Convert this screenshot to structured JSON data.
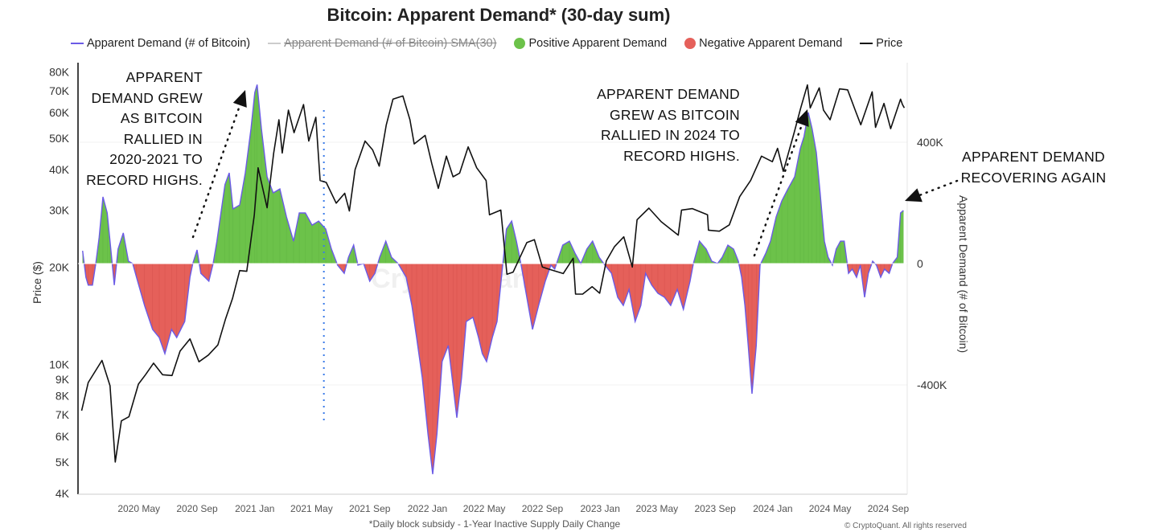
{
  "chart_data": {
    "type": "bar+line",
    "title": "Bitcoin: Apparent Demand* (30-day sum)",
    "legend": {
      "placement": "top",
      "items": [
        {
          "label": "Apparent Demand (# of Bitcoin)",
          "color": "#6b5be6",
          "kind": "line"
        },
        {
          "label": "Apparent Demand (# of Bitcoin)  SMA(30)",
          "color": "#bbbbbb",
          "kind": "line",
          "hidden": true
        },
        {
          "label": "Positive Apparent Demand",
          "color": "#6cc24a",
          "kind": "dot"
        },
        {
          "label": "Negative Apparent Demand",
          "color": "#e5605a",
          "kind": "dot"
        },
        {
          "label": "Price",
          "color": "#111111",
          "kind": "line"
        }
      ]
    },
    "ylabel_left": "Price ($)",
    "ylabel_right": "Apparent Demand (# of Bitcoin)",
    "y_left_scale": "log",
    "y_left_range": [
      4000,
      80000
    ],
    "y_left_ticks": [
      {
        "v": 80000,
        "label": "80K"
      },
      {
        "v": 70000,
        "label": "70K"
      },
      {
        "v": 60000,
        "label": "60K"
      },
      {
        "v": 50000,
        "label": "50K"
      },
      {
        "v": 40000,
        "label": "40K"
      },
      {
        "v": 30000,
        "label": "30K"
      },
      {
        "v": 20000,
        "label": "20K"
      },
      {
        "v": 10000,
        "label": "10K"
      },
      {
        "v": 9000,
        "label": "9K"
      },
      {
        "v": 8000,
        "label": "8K"
      },
      {
        "v": 7000,
        "label": "7K"
      },
      {
        "v": 6000,
        "label": "6K"
      },
      {
        "v": 5000,
        "label": "5K"
      },
      {
        "v": 4000,
        "label": "4K"
      }
    ],
    "y_right_ticks": [
      {
        "v": 400000,
        "label": "400K"
      },
      {
        "v": 0,
        "label": "0"
      },
      {
        "v": -400000,
        "label": "-400K"
      }
    ],
    "x_range": [
      "2020-01-01",
      "2024-10-10"
    ],
    "x_ticks": [
      {
        "d": "2020-05-01",
        "label": "2020 May"
      },
      {
        "d": "2020-09-01",
        "label": "2020 Sep"
      },
      {
        "d": "2021-01-01",
        "label": "2021 Jan"
      },
      {
        "d": "2021-05-01",
        "label": "2021 May"
      },
      {
        "d": "2021-09-01",
        "label": "2021 Sep"
      },
      {
        "d": "2022-01-01",
        "label": "2022 Jan"
      },
      {
        "d": "2022-05-01",
        "label": "2022 May"
      },
      {
        "d": "2022-09-01",
        "label": "2022 Sep"
      },
      {
        "d": "2023-01-01",
        "label": "2023 Jan"
      },
      {
        "d": "2023-05-01",
        "label": "2023 May"
      },
      {
        "d": "2023-09-01",
        "label": "2023 Sep"
      },
      {
        "d": "2024-01-01",
        "label": "2024 Jan"
      },
      {
        "d": "2024-05-01",
        "label": "2024 May"
      },
      {
        "d": "2024-09-01",
        "label": "2024 Sep"
      }
    ],
    "grid": true,
    "vertical_marker_date": "2021-05-27",
    "demand": [
      [
        "2020-01-03",
        42000
      ],
      [
        "2020-01-10",
        -45000
      ],
      [
        "2020-01-15",
        -71000
      ],
      [
        "2020-01-24",
        -71000
      ],
      [
        "2020-01-31",
        0
      ],
      [
        "2020-02-07",
        87000
      ],
      [
        "2020-02-15",
        220000
      ],
      [
        "2020-02-24",
        167000
      ],
      [
        "2020-03-01",
        74000
      ],
      [
        "2020-03-10",
        -71000
      ],
      [
        "2020-03-18",
        48000
      ],
      [
        "2020-03-29",
        101000
      ],
      [
        "2020-04-09",
        8000
      ],
      [
        "2020-04-18",
        0
      ],
      [
        "2020-04-26",
        -45000
      ],
      [
        "2020-05-13",
        -138000
      ],
      [
        "2020-05-30",
        -217000
      ],
      [
        "2020-06-13",
        -244000
      ],
      [
        "2020-06-25",
        -297000
      ],
      [
        "2020-07-09",
        -217000
      ],
      [
        "2020-07-20",
        -244000
      ],
      [
        "2020-08-06",
        -191000
      ],
      [
        "2020-08-17",
        -45000
      ],
      [
        "2020-08-23",
        0
      ],
      [
        "2020-09-01",
        45000
      ],
      [
        "2020-09-09",
        -32000
      ],
      [
        "2020-09-26",
        -58000
      ],
      [
        "2020-10-05",
        0
      ],
      [
        "2020-10-13",
        74000
      ],
      [
        "2020-10-30",
        260000
      ],
      [
        "2020-11-08",
        299000
      ],
      [
        "2020-11-16",
        180000
      ],
      [
        "2020-11-30",
        193000
      ],
      [
        "2020-12-12",
        299000
      ],
      [
        "2020-12-24",
        445000
      ],
      [
        "2021-01-01",
        564000
      ],
      [
        "2021-01-06",
        590000
      ],
      [
        "2021-01-15",
        445000
      ],
      [
        "2021-01-27",
        286000
      ],
      [
        "2021-02-09",
        233000
      ],
      [
        "2021-02-23",
        246000
      ],
      [
        "2021-03-09",
        154000
      ],
      [
        "2021-03-24",
        74000
      ],
      [
        "2021-04-05",
        167000
      ],
      [
        "2021-04-18",
        167000
      ],
      [
        "2021-05-02",
        127000
      ],
      [
        "2021-05-16",
        140000
      ],
      [
        "2021-05-31",
        114000
      ],
      [
        "2021-06-12",
        48000
      ],
      [
        "2021-06-25",
        -5000
      ],
      [
        "2021-07-09",
        -32000
      ],
      [
        "2021-07-18",
        21000
      ],
      [
        "2021-07-29",
        61000
      ],
      [
        "2021-08-07",
        -5000
      ],
      [
        "2021-08-19",
        0
      ],
      [
        "2021-09-01",
        -58000
      ],
      [
        "2021-09-12",
        -32000
      ],
      [
        "2021-09-22",
        21000
      ],
      [
        "2021-10-05",
        74000
      ],
      [
        "2021-10-17",
        21000
      ],
      [
        "2021-10-31",
        0
      ],
      [
        "2021-11-17",
        -45000
      ],
      [
        "2021-11-29",
        -138000
      ],
      [
        "2021-12-09",
        -244000
      ],
      [
        "2021-12-21",
        -376000
      ],
      [
        "2022-01-02",
        -561000
      ],
      [
        "2022-01-12",
        -694000
      ],
      [
        "2022-01-21",
        -561000
      ],
      [
        "2022-02-01",
        -323000
      ],
      [
        "2022-02-14",
        -270000
      ],
      [
        "2022-02-24",
        -403000
      ],
      [
        "2022-03-04",
        -508000
      ],
      [
        "2022-03-14",
        -376000
      ],
      [
        "2022-03-24",
        -191000
      ],
      [
        "2022-04-07",
        -177000
      ],
      [
        "2022-04-19",
        -244000
      ],
      [
        "2022-04-27",
        -297000
      ],
      [
        "2022-05-06",
        -323000
      ],
      [
        "2022-05-18",
        -244000
      ],
      [
        "2022-05-28",
        -191000
      ],
      [
        "2022-06-09",
        -5000
      ],
      [
        "2022-06-17",
        114000
      ],
      [
        "2022-06-28",
        140000
      ],
      [
        "2022-07-08",
        74000
      ],
      [
        "2022-07-18",
        -5000
      ],
      [
        "2022-07-30",
        -111000
      ],
      [
        "2022-08-11",
        -217000
      ],
      [
        "2022-08-24",
        -138000
      ],
      [
        "2022-09-07",
        -58000
      ],
      [
        "2022-09-19",
        -5000
      ],
      [
        "2022-09-27",
        -18000
      ],
      [
        "2022-10-14",
        61000
      ],
      [
        "2022-10-28",
        74000
      ],
      [
        "2022-11-09",
        34000
      ],
      [
        "2022-11-21",
        0
      ],
      [
        "2022-12-04",
        48000
      ],
      [
        "2022-12-16",
        74000
      ],
      [
        "2022-12-30",
        21000
      ],
      [
        "2023-01-11",
        -5000
      ],
      [
        "2023-01-25",
        -32000
      ],
      [
        "2023-02-07",
        -111000
      ],
      [
        "2023-02-19",
        -138000
      ],
      [
        "2023-03-03",
        -85000
      ],
      [
        "2023-03-16",
        -191000
      ],
      [
        "2023-03-28",
        -138000
      ],
      [
        "2023-04-07",
        -32000
      ],
      [
        "2023-04-20",
        -71000
      ],
      [
        "2023-05-03",
        -98000
      ],
      [
        "2023-05-17",
        -111000
      ],
      [
        "2023-05-30",
        -138000
      ],
      [
        "2023-06-13",
        -85000
      ],
      [
        "2023-06-26",
        -151000
      ],
      [
        "2023-07-10",
        -58000
      ],
      [
        "2023-07-17",
        0
      ],
      [
        "2023-07-30",
        74000
      ],
      [
        "2023-08-13",
        48000
      ],
      [
        "2023-08-25",
        8000
      ],
      [
        "2023-09-06",
        0
      ],
      [
        "2023-09-16",
        21000
      ],
      [
        "2023-09-28",
        61000
      ],
      [
        "2023-10-10",
        48000
      ],
      [
        "2023-10-20",
        8000
      ],
      [
        "2023-10-27",
        -45000
      ],
      [
        "2023-11-03",
        -138000
      ],
      [
        "2023-11-10",
        -270000
      ],
      [
        "2023-11-18",
        -429000
      ],
      [
        "2023-11-27",
        -270000
      ],
      [
        "2023-12-05",
        -5000
      ],
      [
        "2023-12-17",
        34000
      ],
      [
        "2023-12-27",
        74000
      ],
      [
        "2024-01-08",
        154000
      ],
      [
        "2024-01-20",
        207000
      ],
      [
        "2024-02-02",
        246000
      ],
      [
        "2024-02-16",
        286000
      ],
      [
        "2024-02-28",
        379000
      ],
      [
        "2024-03-07",
        419000
      ],
      [
        "2024-03-16",
        498000
      ],
      [
        "2024-03-24",
        445000
      ],
      [
        "2024-04-02",
        366000
      ],
      [
        "2024-04-10",
        233000
      ],
      [
        "2024-04-19",
        74000
      ],
      [
        "2024-04-27",
        21000
      ],
      [
        "2024-05-06",
        -5000
      ],
      [
        "2024-05-14",
        48000
      ],
      [
        "2024-05-23",
        74000
      ],
      [
        "2024-05-31",
        74000
      ],
      [
        "2024-06-09",
        -32000
      ],
      [
        "2024-06-17",
        -18000
      ],
      [
        "2024-06-26",
        -45000
      ],
      [
        "2024-07-04",
        -5000
      ],
      [
        "2024-07-13",
        -111000
      ],
      [
        "2024-07-21",
        -32000
      ],
      [
        "2024-07-30",
        8000
      ],
      [
        "2024-08-07",
        -5000
      ],
      [
        "2024-08-16",
        -45000
      ],
      [
        "2024-08-24",
        -18000
      ],
      [
        "2024-09-03",
        -32000
      ],
      [
        "2024-09-10",
        0
      ],
      [
        "2024-09-20",
        21000
      ],
      [
        "2024-09-27",
        167000
      ],
      [
        "2024-10-03",
        175000
      ]
    ],
    "price": [
      [
        "2020-01-01",
        7200
      ],
      [
        "2020-01-15",
        8800
      ],
      [
        "2020-02-13",
        10300
      ],
      [
        "2020-03-01",
        8600
      ],
      [
        "2020-03-12",
        5000
      ],
      [
        "2020-03-25",
        6700
      ],
      [
        "2020-04-10",
        6900
      ],
      [
        "2020-04-30",
        8700
      ],
      [
        "2020-05-15",
        9300
      ],
      [
        "2020-06-01",
        10100
      ],
      [
        "2020-06-20",
        9300
      ],
      [
        "2020-07-10",
        9250
      ],
      [
        "2020-07-27",
        11000
      ],
      [
        "2020-08-17",
        12000
      ],
      [
        "2020-09-05",
        10200
      ],
      [
        "2020-09-25",
        10700
      ],
      [
        "2020-10-15",
        11500
      ],
      [
        "2020-10-31",
        13800
      ],
      [
        "2020-11-15",
        16000
      ],
      [
        "2020-11-30",
        19500
      ],
      [
        "2020-12-15",
        19400
      ],
      [
        "2020-12-31",
        29000
      ],
      [
        "2021-01-08",
        40500
      ],
      [
        "2021-01-27",
        30500
      ],
      [
        "2021-02-10",
        45000
      ],
      [
        "2021-02-21",
        57000
      ],
      [
        "2021-02-28",
        45000
      ],
      [
        "2021-03-13",
        61000
      ],
      [
        "2021-03-25",
        52000
      ],
      [
        "2021-04-14",
        63500
      ],
      [
        "2021-04-25",
        49000
      ],
      [
        "2021-05-10",
        58000
      ],
      [
        "2021-05-19",
        37000
      ],
      [
        "2021-06-01",
        36500
      ],
      [
        "2021-06-22",
        31500
      ],
      [
        "2021-07-10",
        33800
      ],
      [
        "2021-07-20",
        29800
      ],
      [
        "2021-08-01",
        40000
      ],
      [
        "2021-08-22",
        49000
      ],
      [
        "2021-09-07",
        46000
      ],
      [
        "2021-09-21",
        41000
      ],
      [
        "2021-10-06",
        55000
      ],
      [
        "2021-10-20",
        66000
      ],
      [
        "2021-11-10",
        67500
      ],
      [
        "2021-11-25",
        57000
      ],
      [
        "2021-12-04",
        48000
      ],
      [
        "2021-12-27",
        51000
      ],
      [
        "2022-01-10",
        41800
      ],
      [
        "2022-01-24",
        35000
      ],
      [
        "2022-02-10",
        44000
      ],
      [
        "2022-02-24",
        38000
      ],
      [
        "2022-03-10",
        39000
      ],
      [
        "2022-03-28",
        47000
      ],
      [
        "2022-04-15",
        40500
      ],
      [
        "2022-05-05",
        37000
      ],
      [
        "2022-05-12",
        29000
      ],
      [
        "2022-06-05",
        30000
      ],
      [
        "2022-06-18",
        19000
      ],
      [
        "2022-07-01",
        19300
      ],
      [
        "2022-07-30",
        23800
      ],
      [
        "2022-08-15",
        24300
      ],
      [
        "2022-09-01",
        20000
      ],
      [
        "2022-09-15",
        19700
      ],
      [
        "2022-10-15",
        19100
      ],
      [
        "2022-11-05",
        21300
      ],
      [
        "2022-11-10",
        16500
      ],
      [
        "2022-11-25",
        16500
      ],
      [
        "2022-12-15",
        17400
      ],
      [
        "2022-12-31",
        16600
      ],
      [
        "2023-01-14",
        20900
      ],
      [
        "2023-01-31",
        23100
      ],
      [
        "2023-02-20",
        24800
      ],
      [
        "2023-03-10",
        20000
      ],
      [
        "2023-03-20",
        28000
      ],
      [
        "2023-04-14",
        30400
      ],
      [
        "2023-05-10",
        27600
      ],
      [
        "2023-06-15",
        25100
      ],
      [
        "2023-06-22",
        30000
      ],
      [
        "2023-07-15",
        30300
      ],
      [
        "2023-08-16",
        29000
      ],
      [
        "2023-08-18",
        26000
      ],
      [
        "2023-09-10",
        25800
      ],
      [
        "2023-10-01",
        27000
      ],
      [
        "2023-10-23",
        33000
      ],
      [
        "2023-11-15",
        37000
      ],
      [
        "2023-12-08",
        44000
      ],
      [
        "2023-12-31",
        42300
      ],
      [
        "2024-01-11",
        46500
      ],
      [
        "2024-01-23",
        39500
      ],
      [
        "2024-02-15",
        52000
      ],
      [
        "2024-02-29",
        62000
      ],
      [
        "2024-03-14",
        73000
      ],
      [
        "2024-03-20",
        62000
      ],
      [
        "2024-04-08",
        71500
      ],
      [
        "2024-04-17",
        61000
      ],
      [
        "2024-05-01",
        57000
      ],
      [
        "2024-05-21",
        71000
      ],
      [
        "2024-06-07",
        70500
      ],
      [
        "2024-06-24",
        60500
      ],
      [
        "2024-07-05",
        55000
      ],
      [
        "2024-07-29",
        69500
      ],
      [
        "2024-08-05",
        54000
      ],
      [
        "2024-08-23",
        64000
      ],
      [
        "2024-09-06",
        53500
      ],
      [
        "2024-09-27",
        66000
      ],
      [
        "2024-10-01",
        63500
      ],
      [
        "2024-10-05",
        62000
      ]
    ],
    "annotations": [
      "APPARENT DEMAND GREW AS BITCOIN RALLIED IN 2020-2021 TO RECORD HIGHS.",
      "APPARENT DEMAND GREW AS BITCOIN RALLIED IN 2024 TO RECORD HIGHS.",
      "APPARENT DEMAND RECOVERING AGAIN"
    ],
    "footnote": "*Daily block subsidy - 1-Year Inactive Supply Daily Change"
  },
  "annotation_lines": {
    "a1": [
      "APPARENT",
      "DEMAND GREW",
      "AS BITCOIN",
      "RALLIED IN",
      "2020-2021 TO",
      "RECORD HIGHS."
    ],
    "a2": [
      "APPARENT DEMAND",
      "GREW AS BITCOIN",
      "RALLIED IN 2024 TO",
      "RECORD HIGHS."
    ],
    "a3": [
      "APPARENT DEMAND",
      "RECOVERING AGAIN"
    ]
  },
  "watermark": "CryptoQuant",
  "copyright": "© CryptoQuant. All rights reserved"
}
